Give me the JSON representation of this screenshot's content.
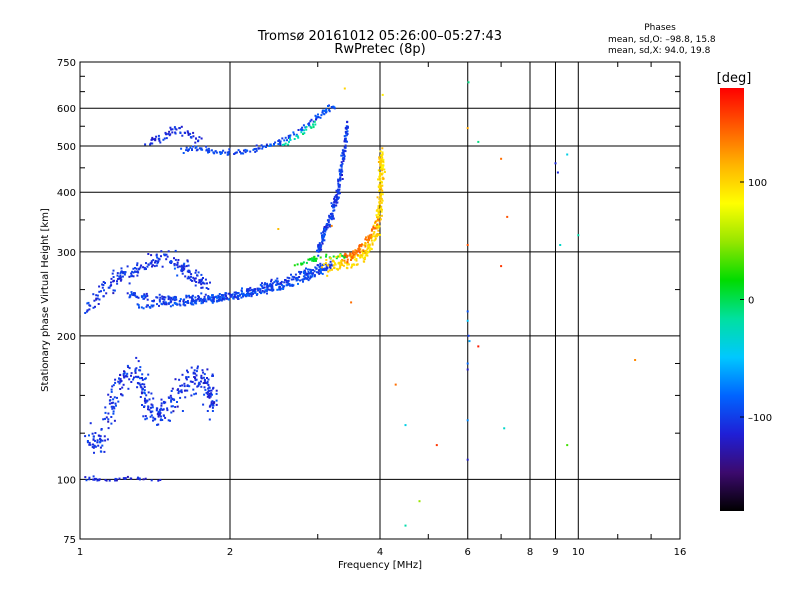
{
  "chart_data": {
    "type": "scatter",
    "title": "Tromsø 20161012 05:26:00–05:27:43",
    "subtitle": "RwPretec (8p)",
    "xlabel": "Frequency [MHz]",
    "ylabel": "Stationary phase Virtual Height [km]",
    "x_scale": "log",
    "y_scale": "log",
    "xlim": [
      1,
      16
    ],
    "ylim": [
      75,
      750
    ],
    "x_ticks": [
      1,
      2,
      4,
      6,
      8,
      9,
      10,
      16
    ],
    "x_tick_labels": [
      "1",
      "2",
      "4",
      "6",
      "8",
      "9",
      "10",
      "16"
    ],
    "x_minor_ticks": [
      3,
      5,
      7,
      12,
      14
    ],
    "y_ticks": [
      75,
      100,
      200,
      300,
      400,
      500,
      600,
      750
    ],
    "y_tick_labels": [
      "75",
      "100",
      "200",
      "300",
      "400",
      "500",
      "600",
      "750"
    ],
    "y_minor_ticks": [
      125,
      150,
      175,
      250,
      350,
      450,
      550,
      650,
      700
    ],
    "grid": true,
    "stats": {
      "heading": "Phases",
      "line_o": "mean, sd,O: –98.8, 15.8",
      "line_x": "mean, sd,X:  94.0, 19.8"
    },
    "colorbar": {
      "label": "[deg]",
      "range": [
        -180,
        180
      ],
      "ticks": [
        100,
        0,
        -100
      ],
      "tick_labels": [
        "100",
        "0",
        "–100"
      ],
      "colors": [
        "#000000",
        "#3c0a6e",
        "#1f1fd6",
        "#0064ff",
        "#00c8ff",
        "#00e0a0",
        "#00dc00",
        "#96e600",
        "#ffff00",
        "#ffb400",
        "#ff5a00",
        "#ff0000"
      ]
    },
    "series": [
      {
        "kind": "band",
        "points": [
          [
            1.02,
            100
          ],
          [
            1.05,
            101
          ],
          [
            1.08,
            100
          ],
          [
            1.12,
            99
          ],
          [
            1.18,
            100
          ],
          [
            1.25,
            101
          ],
          [
            1.35,
            100
          ],
          [
            1.45,
            99
          ]
        ],
        "phase": -110,
        "n": 40,
        "dx": 0.02,
        "dy": 0.01
      },
      {
        "kind": "band",
        "points": [
          [
            1.05,
            125
          ],
          [
            1.1,
            118
          ],
          [
            1.15,
            140
          ],
          [
            1.2,
            160
          ],
          [
            1.3,
            170
          ],
          [
            1.35,
            150
          ],
          [
            1.4,
            135
          ],
          [
            1.5,
            140
          ],
          [
            1.6,
            155
          ],
          [
            1.7,
            165
          ],
          [
            1.8,
            160
          ],
          [
            1.85,
            140
          ]
        ],
        "phase": -105,
        "n": 380,
        "dx": 0.04,
        "dy": 0.09
      },
      {
        "kind": "band",
        "points": [
          [
            1.03,
            225
          ],
          [
            1.1,
            245
          ],
          [
            1.2,
            265
          ],
          [
            1.3,
            275
          ],
          [
            1.4,
            285
          ],
          [
            1.5,
            295
          ],
          [
            1.6,
            280
          ],
          [
            1.7,
            265
          ],
          [
            1.8,
            255
          ]
        ],
        "phase": -105,
        "n": 220,
        "dx": 0.05,
        "dy": 0.05
      },
      {
        "kind": "band",
        "points": [
          [
            1.25,
            245
          ],
          [
            1.4,
            240
          ],
          [
            1.6,
            238
          ],
          [
            1.8,
            240
          ],
          [
            2.0,
            243
          ],
          [
            2.2,
            248
          ],
          [
            2.4,
            255
          ],
          [
            2.6,
            262
          ],
          [
            2.8,
            270
          ],
          [
            3.0,
            276
          ],
          [
            3.2,
            280
          ]
        ],
        "phase": -100,
        "n": 320,
        "dx": 0.015,
        "dy": 0.03
      },
      {
        "kind": "band",
        "points": [
          [
            1.3,
            230
          ],
          [
            1.5,
            233
          ],
          [
            1.7,
            235
          ],
          [
            1.9,
            238
          ],
          [
            2.1,
            242
          ],
          [
            2.3,
            247
          ],
          [
            2.5,
            252
          ],
          [
            2.7,
            258
          ],
          [
            2.9,
            266
          ],
          [
            3.1,
            275
          ]
        ],
        "phase": -95,
        "n": 200,
        "dx": 0.012,
        "dy": 0.02
      },
      {
        "kind": "band",
        "points": [
          [
            2.7,
            280
          ],
          [
            2.85,
            285
          ],
          [
            2.95,
            290
          ],
          [
            3.1,
            292
          ],
          [
            3.3,
            293
          ],
          [
            3.5,
            294
          ]
        ],
        "phase": 10,
        "n": 40,
        "dx": 0.02,
        "dy": 0.02
      },
      {
        "kind": "band",
        "points": [
          [
            3.1,
            280
          ],
          [
            3.3,
            282
          ],
          [
            3.5,
            286
          ],
          [
            3.7,
            294
          ],
          [
            3.85,
            310
          ],
          [
            3.95,
            335
          ],
          [
            4.0,
            370
          ],
          [
            4.02,
            410
          ],
          [
            4.03,
            450
          ],
          [
            4.03,
            480
          ]
        ],
        "phase": 100,
        "n": 260,
        "dx": 0.02,
        "dy": 0.05
      },
      {
        "kind": "band",
        "points": [
          [
            3.4,
            290
          ],
          [
            3.6,
            300
          ],
          [
            3.8,
            320
          ],
          [
            3.95,
            350
          ]
        ],
        "phase": 140,
        "n": 70,
        "dx": 0.02,
        "dy": 0.04
      },
      {
        "kind": "band",
        "points": [
          [
            3.0,
            300
          ],
          [
            3.1,
            330
          ],
          [
            3.2,
            360
          ],
          [
            3.3,
            400
          ],
          [
            3.35,
            450
          ],
          [
            3.4,
            500
          ],
          [
            3.45,
            560
          ]
        ],
        "phase": -100,
        "n": 220,
        "dx": 0.012,
        "dy": 0.04
      },
      {
        "kind": "band",
        "points": [
          [
            1.6,
            490
          ],
          [
            1.7,
            495
          ],
          [
            1.9,
            485
          ],
          [
            2.1,
            485
          ],
          [
            2.3,
            495
          ],
          [
            2.5,
            510
          ],
          [
            2.7,
            530
          ],
          [
            2.9,
            560
          ],
          [
            3.1,
            590
          ],
          [
            3.25,
            610
          ]
        ],
        "phase": -95,
        "n": 150,
        "dx": 0.02,
        "dy": 0.02
      },
      {
        "kind": "band",
        "points": [
          [
            1.35,
            510
          ],
          [
            1.45,
            520
          ],
          [
            1.55,
            540
          ],
          [
            1.65,
            530
          ],
          [
            1.75,
            510
          ]
        ],
        "phase": -110,
        "n": 60,
        "dx": 0.02,
        "dy": 0.03
      },
      {
        "kind": "band",
        "points": [
          [
            2.55,
            500
          ],
          [
            2.7,
            520
          ],
          [
            2.85,
            540
          ],
          [
            3.0,
            560
          ]
        ],
        "phase": -20,
        "n": 25,
        "dx": 0.01,
        "dy": 0.02
      },
      {
        "kind": "points",
        "pts": [
          [
            6.02,
            680,
            -10
          ],
          [
            6.0,
            545,
            120
          ],
          [
            6.3,
            510,
            -10
          ],
          [
            7.0,
            470,
            140
          ],
          [
            9.0,
            460,
            -110
          ],
          [
            9.1,
            440,
            -110
          ],
          [
            9.5,
            480,
            -40
          ],
          [
            7.2,
            355,
            150
          ],
          [
            6.0,
            310,
            150
          ],
          [
            7.0,
            280,
            160
          ],
          [
            9.2,
            310,
            -30
          ],
          [
            10.0,
            325,
            -20
          ],
          [
            6.0,
            225,
            -90
          ],
          [
            6.0,
            215,
            -50
          ],
          [
            6.02,
            200,
            -100
          ],
          [
            6.05,
            195,
            -60
          ],
          [
            6.3,
            190,
            170
          ],
          [
            6.0,
            175,
            -80
          ],
          [
            6.0,
            170,
            -120
          ],
          [
            13.0,
            178,
            130
          ],
          [
            4.3,
            158,
            140
          ],
          [
            4.5,
            130,
            -40
          ],
          [
            6.0,
            133,
            -70
          ],
          [
            7.1,
            128,
            -30
          ],
          [
            5.2,
            118,
            160
          ],
          [
            6.0,
            110,
            -120
          ],
          [
            9.5,
            118,
            30
          ],
          [
            4.8,
            90,
            50
          ],
          [
            4.5,
            80,
            -20
          ],
          [
            3.5,
            235,
            140
          ],
          [
            2.5,
            335,
            110
          ],
          [
            3.2,
            340,
            130
          ],
          [
            4.05,
            640,
            90
          ],
          [
            3.4,
            660,
            100
          ]
        ]
      }
    ]
  }
}
